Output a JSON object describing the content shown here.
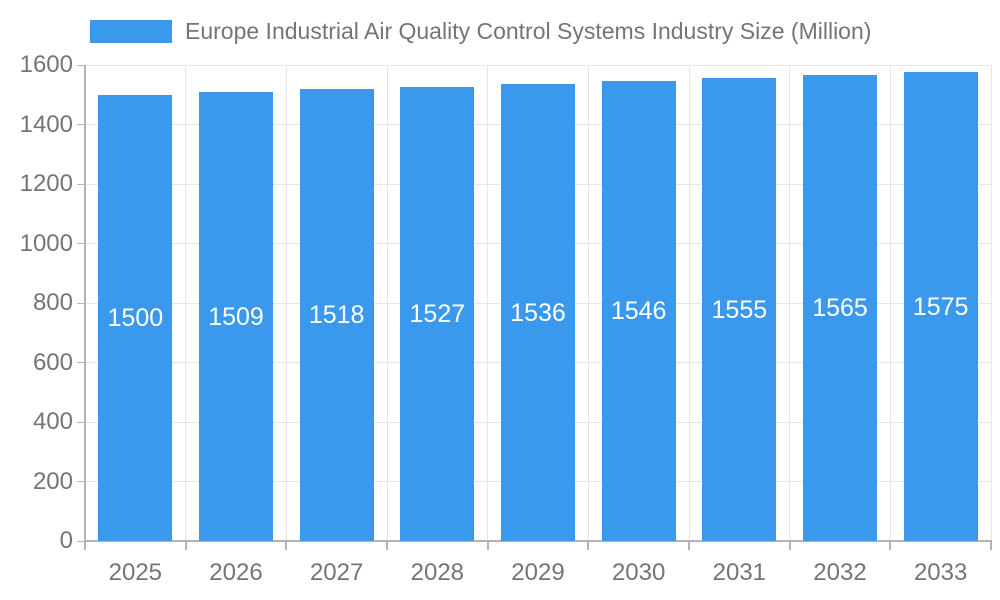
{
  "chart_data": {
    "type": "bar",
    "legend": "Europe Industrial Air Quality Control Systems Industry Size (Million)",
    "categories": [
      "2025",
      "2026",
      "2027",
      "2028",
      "2029",
      "2030",
      "2031",
      "2032",
      "2033"
    ],
    "values": [
      1500,
      1509,
      1518,
      1527,
      1536,
      1546,
      1555,
      1565,
      1575
    ],
    "xlabel": "",
    "ylabel": "",
    "ylim": [
      0,
      1600
    ],
    "yticks": [
      0,
      200,
      400,
      600,
      800,
      1000,
      1200,
      1400,
      1600
    ],
    "grid": true,
    "legend_position": "top-left",
    "value_label_position": "inside-middle",
    "colors": {
      "bar": "#3A99EC",
      "grid": "#E6E6E6",
      "axis": "#B3B3B3",
      "text": "#757575",
      "value_label": "#FFFFFF",
      "background": "#FFFFFF"
    }
  }
}
